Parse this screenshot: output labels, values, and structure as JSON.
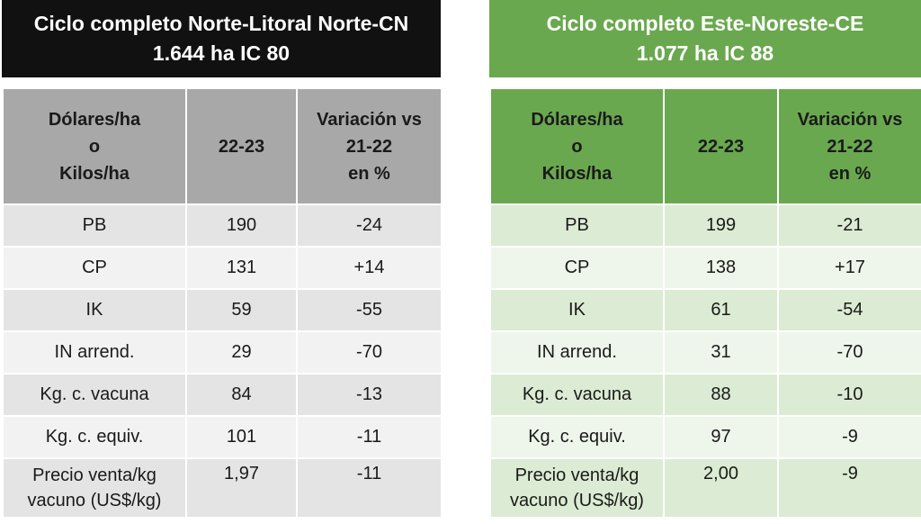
{
  "left": {
    "title": "Ciclo completo Norte-Litoral Norte-CN",
    "subtitle": "1.644  ha IC 80",
    "header": {
      "col1": [
        "Dólares/ha",
        "o",
        "Kilos/ha"
      ],
      "col2": "22-23",
      "col3": [
        "Variación vs",
        "21-22",
        "en %"
      ]
    },
    "rows": [
      {
        "label": "PB",
        "value": "190",
        "change": "-24"
      },
      {
        "label": "CP",
        "value": "131",
        "change": "+14"
      },
      {
        "label": "IK",
        "value": "59",
        "change": "-55"
      },
      {
        "label": "IN arrend.",
        "value": "29",
        "change": "-70"
      },
      {
        "label": "Kg. c. vacuna",
        "value": "84",
        "change": "-13"
      },
      {
        "label": "Kg. c. equiv.",
        "value": "101",
        "change": "-11"
      }
    ],
    "last_row": {
      "label_1": "Precio venta/kg",
      "label_2": "vacuno (US$/kg)",
      "value": "1,97",
      "change": "-11"
    }
  },
  "right": {
    "title": "Ciclo completo Este-Noreste-CE",
    "subtitle": "1.077  ha IC 88",
    "header": {
      "col1": [
        "Dólares/ha",
        "o",
        "Kilos/ha"
      ],
      "col2": "22-23",
      "col3": [
        "Variación vs",
        "21-22",
        "en %"
      ]
    },
    "rows": [
      {
        "label": "PB",
        "value": "199",
        "change": "-21"
      },
      {
        "label": "CP",
        "value": "138",
        "change": "+17"
      },
      {
        "label": "IK",
        "value": "61",
        "change": "-54"
      },
      {
        "label": "IN arrend.",
        "value": "31",
        "change": "-70"
      },
      {
        "label": "Kg. c. vacuna",
        "value": "88",
        "change": "-10"
      },
      {
        "label": "Kg. c. equiv.",
        "value": "97",
        "change": "-9"
      }
    ],
    "last_row": {
      "label_1": "Precio venta/kg",
      "label_2": "vacuno (US$/kg)",
      "value": "2,00",
      "change": "-9"
    }
  },
  "colors": {
    "left_banner": "#111111",
    "right_banner": "#6aa84f",
    "left_header": "#a8a8a8",
    "right_header": "#6aa84f"
  }
}
